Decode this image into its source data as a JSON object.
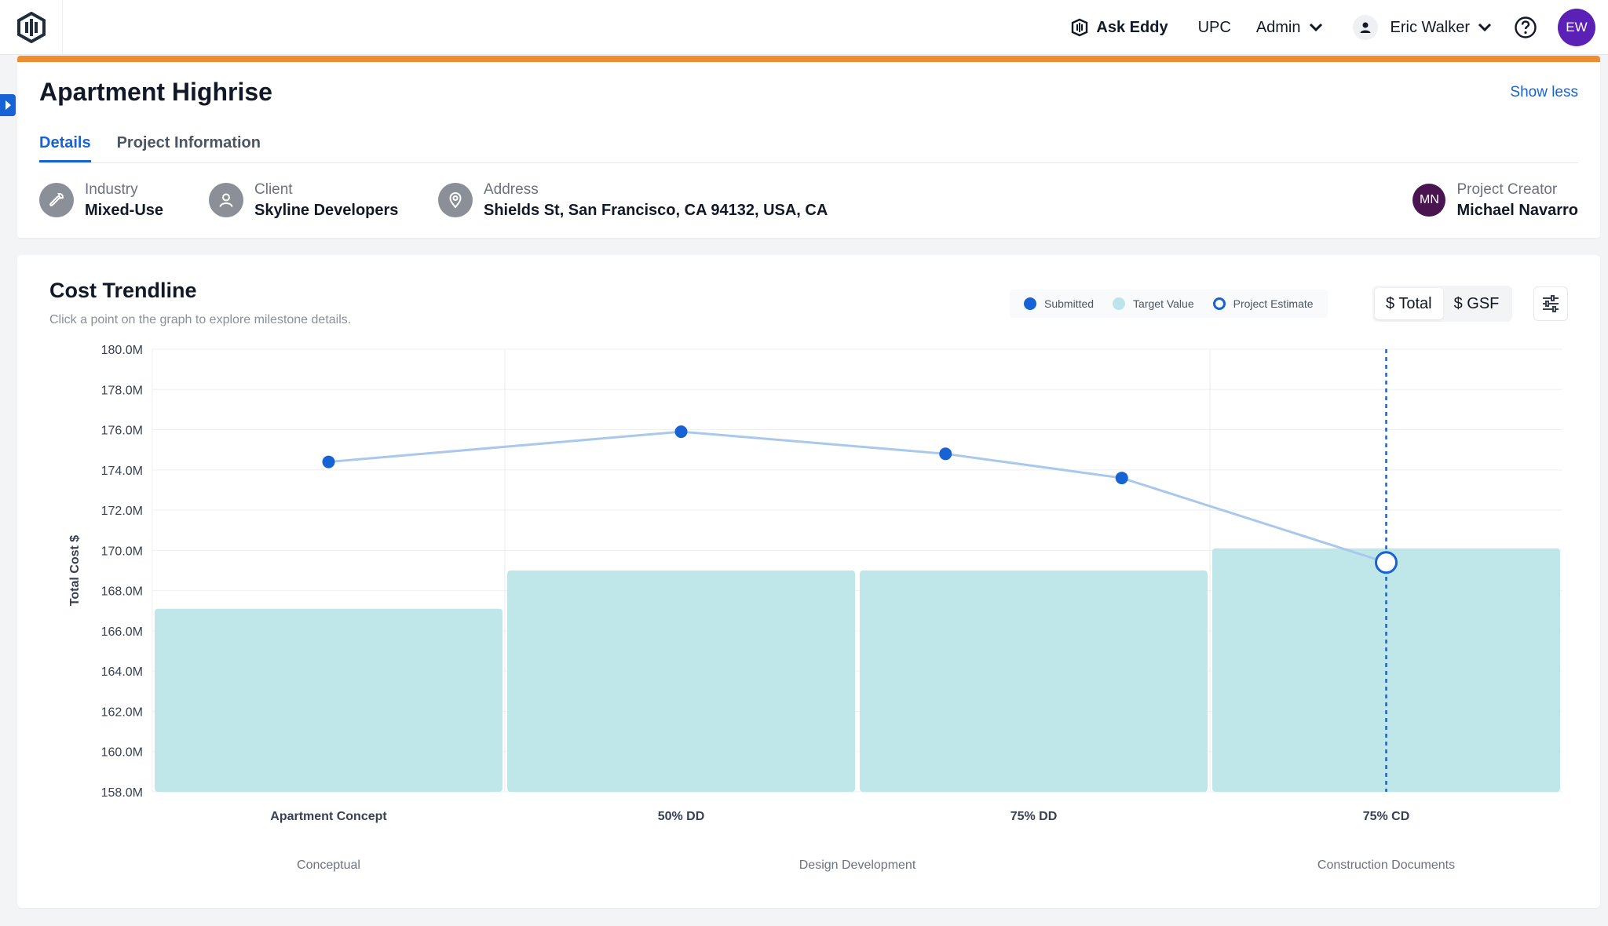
{
  "nav": {
    "ask_eddy": "Ask Eddy",
    "upc": "UPC",
    "admin": "Admin",
    "user_name": "Eric Walker",
    "avatar_initials": "EW"
  },
  "project": {
    "title": "Apartment Highrise",
    "show_less": "Show less",
    "tabs": [
      {
        "label": "Details",
        "active": true
      },
      {
        "label": "Project Information",
        "active": false
      }
    ],
    "industry": {
      "label": "Industry",
      "value": "Mixed-Use"
    },
    "client": {
      "label": "Client",
      "value": "Skyline Developers"
    },
    "address": {
      "label": "Address",
      "value": "Shields St, San Francisco, CA 94132, USA, CA"
    },
    "creator": {
      "label": "Project Creator",
      "value": "Michael Navarro",
      "initials": "MN"
    }
  },
  "chart": {
    "title": "Cost Trendline",
    "subtitle": "Click a point on the graph to explore milestone details.",
    "legend": {
      "submitted": "Submitted",
      "target": "Target Value",
      "estimate": "Project Estimate"
    },
    "toggle": {
      "total": "$ Total",
      "gsf": "$ GSF"
    },
    "colors": {
      "submitted": "#1763d6",
      "target": "#bfe6e8",
      "line": "#a9c8ec"
    }
  },
  "chart_data": {
    "type": "bar",
    "ylabel": "Total Cost $",
    "ylim": [
      158,
      180
    ],
    "yunit": "M",
    "yticks": [
      "158.0M",
      "160.0M",
      "162.0M",
      "164.0M",
      "166.0M",
      "168.0M",
      "170.0M",
      "172.0M",
      "174.0M",
      "176.0M",
      "178.0M",
      "180.0M"
    ],
    "categories": [
      "Apartment Concept",
      "50% DD",
      "75% DD",
      "75% CD"
    ],
    "phases": [
      {
        "name": "Conceptual",
        "span": [
          0,
          0
        ]
      },
      {
        "name": "Design Development",
        "span": [
          1,
          2
        ]
      },
      {
        "name": "Construction Documents",
        "span": [
          3,
          3
        ]
      }
    ],
    "target_values": [
      167.1,
      169.0,
      169.0,
      170.1
    ],
    "submitted_points": [
      {
        "x": 0,
        "y": 174.4
      },
      {
        "x": 1,
        "y": 175.9
      },
      {
        "x": 1.75,
        "y": 174.8
      },
      {
        "x": 2.25,
        "y": 173.6
      }
    ],
    "project_estimate": {
      "x": 3,
      "y": 169.4
    },
    "highlight": "75% CD"
  }
}
